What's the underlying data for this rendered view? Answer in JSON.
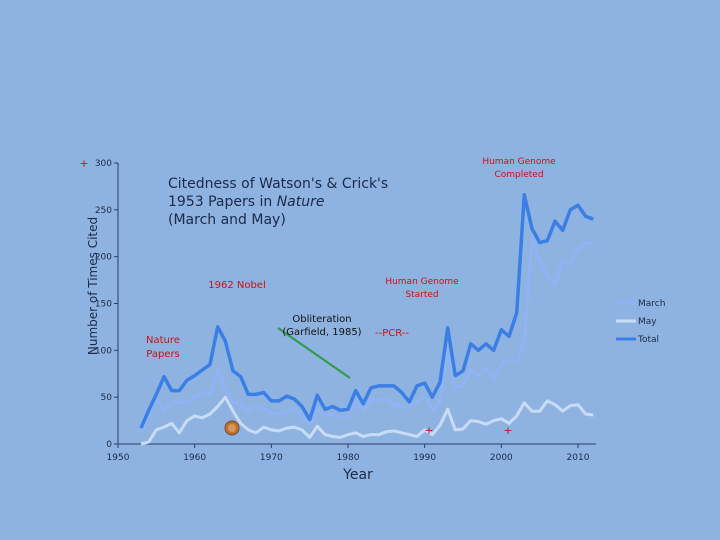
{
  "colors": {
    "background": "#8fb3e0",
    "march": "#8fb3f5",
    "may": "#c9dcf7",
    "total": "#3a7ee6",
    "red": "#cc1111",
    "green": "#2e9a4a",
    "axis": "#2c3e66",
    "nobel_icon": "#b87333"
  },
  "chart_data": {
    "type": "line",
    "title": "Citedness of Watson's & Crick's 1953 Papers in Nature (March and May)",
    "title_lines": [
      "Citedness of Watson's & Crick's",
      "1953 Papers in ",
      "Nature",
      "(March and May)"
    ],
    "ylabel": "Number of Times Cited",
    "xlabel": "Year",
    "ylim": [
      0,
      300
    ],
    "xlim": [
      1950,
      2010
    ],
    "yticks": [
      "0",
      "50",
      "100",
      "150",
      "200",
      "250",
      "300"
    ],
    "xticks": [
      "1950",
      "1960",
      "1970",
      "1980",
      "1990",
      "2000",
      "2010"
    ],
    "legend_position": "right",
    "x": [
      1953,
      1954,
      1955,
      1956,
      1957,
      1958,
      1959,
      1960,
      1961,
      1962,
      1963,
      1964,
      1965,
      1966,
      1967,
      1968,
      1969,
      1970,
      1971,
      1972,
      1973,
      1974,
      1975,
      1976,
      1977,
      1978,
      1979,
      1980,
      1981,
      1982,
      1983,
      1984,
      1985,
      1986,
      1987,
      1988,
      1989,
      1990,
      1991,
      1992,
      1993,
      1994,
      1995,
      1996,
      1997,
      1998,
      1999,
      2000,
      2001,
      2002,
      2003,
      2004,
      2005,
      2006,
      2007,
      2008,
      2009,
      2010,
      2011,
      2012
    ],
    "series": [
      {
        "name": "March",
        "values": [
          12,
          30,
          50,
          35,
          45,
          44,
          45,
          50,
          55,
          53,
          80,
          58,
          45,
          42,
          35,
          40,
          38,
          33,
          33,
          34,
          38,
          30,
          22,
          38,
          30,
          32,
          28,
          28,
          45,
          35,
          48,
          47,
          48,
          42,
          40,
          40,
          45,
          52,
          36,
          45,
          97,
          60,
          62,
          80,
          72,
          82,
          70,
          85,
          90,
          87,
          110,
          220,
          195,
          180,
          170,
          195,
          192,
          208,
          215,
          214
        ],
        "color_key": "march"
      },
      {
        "name": "May",
        "values": [
          0,
          2,
          15,
          18,
          22,
          12,
          25,
          30,
          28,
          32,
          40,
          50,
          35,
          22,
          15,
          12,
          18,
          15,
          14,
          17,
          18,
          15,
          7,
          19,
          10,
          8,
          7,
          10,
          12,
          8,
          10,
          10,
          13,
          14,
          12,
          10,
          8,
          15,
          10,
          20,
          37,
          15,
          16,
          25,
          24,
          21,
          25,
          27,
          22,
          30,
          44,
          35,
          35,
          46,
          42,
          35,
          41,
          42,
          32,
          31
        ],
        "color_key": "may"
      },
      {
        "name": "Total",
        "values": [
          17,
          36,
          53,
          72,
          57,
          57,
          68,
          73,
          79,
          85,
          125,
          110,
          78,
          72,
          53,
          53,
          55,
          46,
          46,
          51,
          48,
          40,
          26,
          52,
          37,
          40,
          36,
          37,
          57,
          43,
          60,
          62,
          62,
          62,
          55,
          45,
          62,
          65,
          50,
          66,
          124,
          73,
          78,
          107,
          100,
          107,
          100,
          122,
          115,
          140,
          266,
          230,
          215,
          217,
          238,
          228,
          250,
          255,
          243,
          240
        ],
        "color_key": "total"
      }
    ],
    "annotations": {
      "human_genome_completed": [
        "Human Genome",
        "Completed"
      ],
      "human_genome_started": [
        "Human Genome",
        "Started"
      ],
      "nobel": "1962 Nobel",
      "obliteration": [
        "Obliteration",
        "(Garfield, 1985)"
      ],
      "pcr": "--PCR--",
      "nature_papers": [
        "Nature",
        "Papers"
      ],
      "plus": "+"
    }
  }
}
